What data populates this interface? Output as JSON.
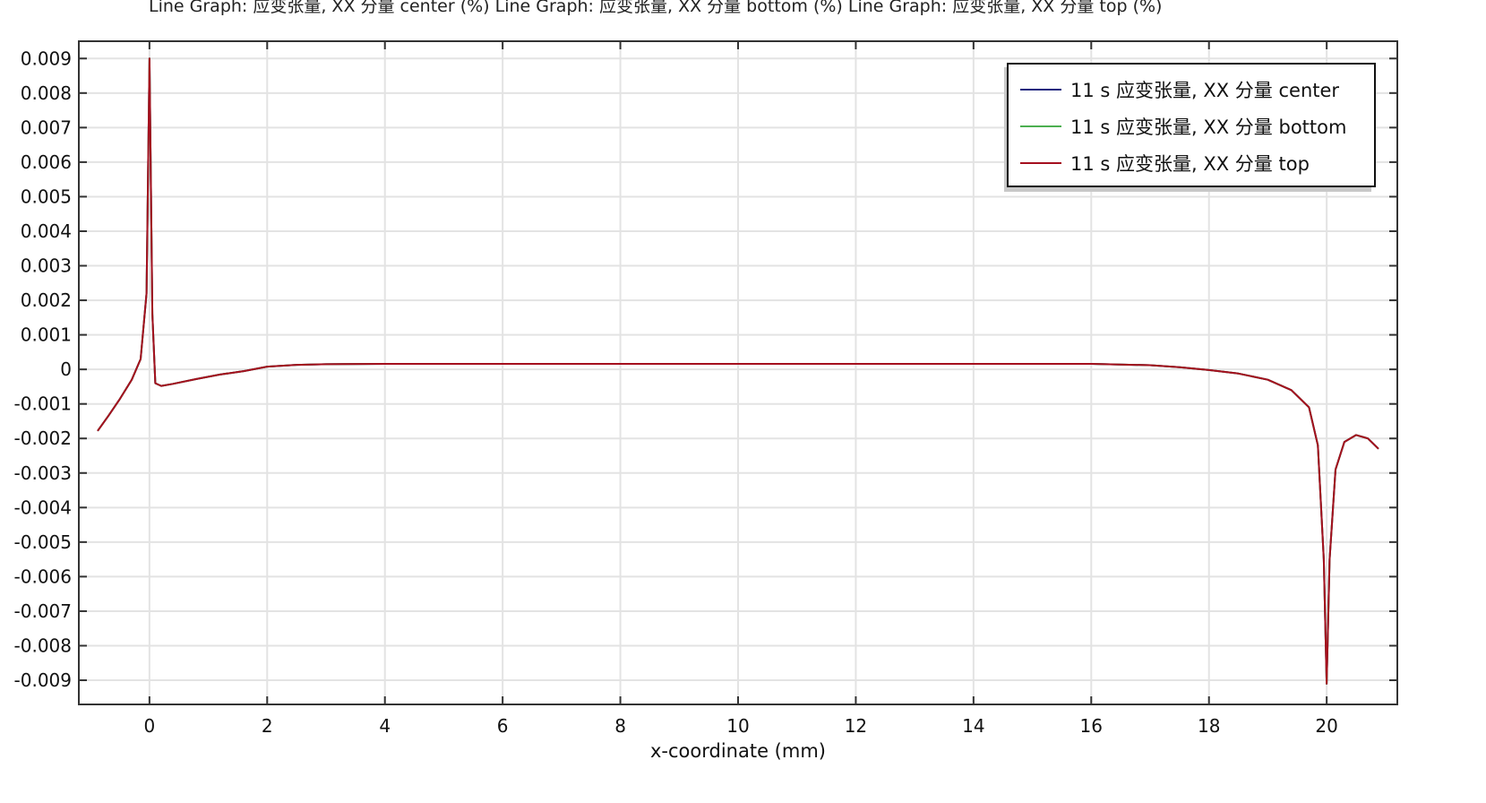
{
  "header": {
    "title": "Line Graph: 应变张量, XX 分量 center (%)  Line Graph: 应变张量, XX 分量 bottom (%)  Line Graph: 应变张量, XX 分量 top (%)"
  },
  "chart_data": {
    "type": "line",
    "title": "Line Graph: 应变张量, XX 分量 center (%)  Line Graph: 应变张量, XX 分量 bottom (%)  Line Graph: 应变张量, XX 分量 top (%)",
    "xlabel": "x-coordinate (mm)",
    "ylabel": "",
    "xlim": [
      -1.2,
      21.2
    ],
    "ylim": [
      -0.0097,
      0.0095
    ],
    "xticks": [
      0,
      2,
      4,
      6,
      8,
      10,
      12,
      14,
      16,
      18,
      20
    ],
    "yticks": [
      0.009,
      0.008,
      0.007,
      0.006,
      0.005,
      0.004,
      0.003,
      0.002,
      0.001,
      0,
      -0.001,
      -0.002,
      -0.003,
      -0.004,
      -0.005,
      -0.006,
      -0.007,
      -0.008,
      -0.009
    ],
    "xtick_labels": [
      "0",
      "2",
      "4",
      "6",
      "8",
      "10",
      "12",
      "14",
      "16",
      "18",
      "20"
    ],
    "ytick_labels": [
      "0.009",
      "0.008",
      "0.007",
      "0.006",
      "0.005",
      "0.004",
      "0.003",
      "0.002",
      "0.001",
      "0",
      "-0.001",
      "-0.002",
      "-0.003",
      "-0.004",
      "-0.005",
      "-0.006",
      "-0.007",
      "-0.008",
      "-0.009"
    ],
    "grid": true,
    "legend_position": "top-right",
    "x": [
      -0.88,
      -0.7,
      -0.5,
      -0.3,
      -0.15,
      -0.05,
      0,
      0.05,
      0.1,
      0.2,
      0.4,
      0.8,
      1.2,
      1.6,
      2.0,
      2.5,
      3,
      4,
      6,
      8,
      10,
      12,
      14,
      16,
      17,
      17.5,
      18,
      18.5,
      19,
      19.4,
      19.7,
      19.85,
      19.95,
      20,
      20.05,
      20.15,
      20.3,
      20.5,
      20.7,
      20.88
    ],
    "series": [
      {
        "name": "11 s 应变张量, XX 分量 center",
        "color": "#1a237e",
        "values": [
          -0.00178,
          -0.00135,
          -0.00085,
          -0.0003,
          0.0003,
          0.0022,
          0.009,
          0.0016,
          -0.0004,
          -0.00048,
          -0.00042,
          -0.00028,
          -0.00015,
          -5e-05,
          8e-05,
          0.00013,
          0.00015,
          0.00016,
          0.00016,
          0.00016,
          0.00016,
          0.00016,
          0.00016,
          0.00016,
          0.00012,
          6e-05,
          -2e-05,
          -0.00012,
          -0.0003,
          -0.0006,
          -0.0011,
          -0.0022,
          -0.0055,
          -0.0091,
          -0.0055,
          -0.0029,
          -0.0021,
          -0.0019,
          -0.002,
          -0.0023
        ]
      },
      {
        "name": "11 s 应变张量, XX 分量 bottom",
        "color": "#4caf50",
        "values": [
          -0.00178,
          -0.00135,
          -0.00085,
          -0.0003,
          0.0003,
          0.0022,
          0.009,
          0.0016,
          -0.0004,
          -0.00048,
          -0.00042,
          -0.00028,
          -0.00015,
          -5e-05,
          8e-05,
          0.00013,
          0.00015,
          0.00016,
          0.00016,
          0.00016,
          0.00016,
          0.00016,
          0.00016,
          0.00016,
          0.00012,
          6e-05,
          -2e-05,
          -0.00012,
          -0.0003,
          -0.0006,
          -0.0011,
          -0.0022,
          -0.0055,
          -0.0091,
          -0.0055,
          -0.0029,
          -0.0021,
          -0.0019,
          -0.002,
          -0.0023
        ]
      },
      {
        "name": "11 s 应变张量, XX 分量 top",
        "color": "#a50f1e",
        "values": [
          -0.00178,
          -0.00135,
          -0.00085,
          -0.0003,
          0.0003,
          0.0022,
          0.009,
          0.0016,
          -0.0004,
          -0.00048,
          -0.00042,
          -0.00028,
          -0.00015,
          -5e-05,
          8e-05,
          0.00013,
          0.00015,
          0.00016,
          0.00016,
          0.00016,
          0.00016,
          0.00016,
          0.00016,
          0.00016,
          0.00012,
          6e-05,
          -2e-05,
          -0.00012,
          -0.0003,
          -0.0006,
          -0.0011,
          -0.0022,
          -0.0055,
          -0.0091,
          -0.0055,
          -0.0029,
          -0.0021,
          -0.0019,
          -0.002,
          -0.0023
        ]
      }
    ]
  }
}
